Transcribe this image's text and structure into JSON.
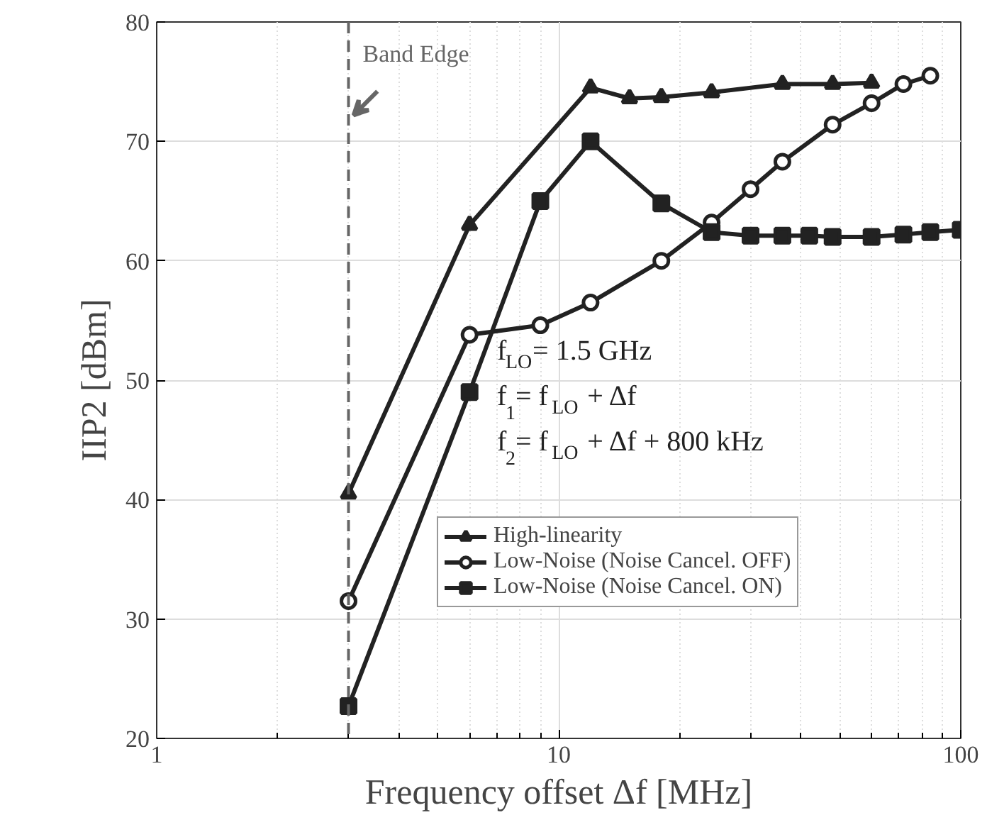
{
  "chart_data": {
    "type": "line",
    "xlabel": "Frequency offset Δf [MHz]",
    "ylabel": "IIP2 [dBm]",
    "log": "x",
    "xlim": [
      1,
      100
    ],
    "xticks": [
      1,
      10,
      100
    ],
    "ylim": [
      20,
      80
    ],
    "yticks": [
      20,
      30,
      40,
      50,
      60,
      70,
      80
    ],
    "grid": true,
    "legend": "right",
    "series": [
      {
        "name": "High-linearity",
        "color": "#222222",
        "marker": "triangle",
        "x": [
          3,
          6,
          12,
          15,
          18,
          24,
          36,
          48,
          60
        ],
        "values": [
          40.5,
          63,
          74.5,
          73.6,
          73.7,
          74.1,
          74.8,
          74.8,
          74.9
        ]
      },
      {
        "name": "Low-Noise (Noise Cancel. OFF)",
        "color": "#222222",
        "marker": "circle",
        "x": [
          3,
          6,
          9,
          12,
          18,
          24,
          30,
          36,
          48,
          60,
          72,
          84
        ],
        "values": [
          31.5,
          53.8,
          54.6,
          56.5,
          60,
          63.2,
          66,
          68.3,
          71.4,
          73.2,
          74.8,
          75.5
        ]
      },
      {
        "name": "Low-Noise (Noise Cancel. ON)",
        "color": "#222222",
        "marker": "square",
        "x": [
          3,
          6,
          9,
          12,
          18,
          24,
          30,
          36,
          42,
          48,
          60,
          72,
          84,
          100
        ],
        "values": [
          22.7,
          49,
          65,
          70,
          64.8,
          62.4,
          62.1,
          62.1,
          62.1,
          62,
          62,
          62.2,
          62.4,
          62.6
        ]
      }
    ],
    "ref_lines": [
      {
        "axis": "x",
        "value": 3,
        "label": "Band Edge",
        "color": "#666666",
        "line_style": "dashed"
      }
    ],
    "annotations": [
      {
        "text": "f$_{LO}$= 1.5 GHz"
      },
      {
        "text": "f$_{1}$= f$_{LO}$ + Δf"
      },
      {
        "text": "f$_{2}$= f$_{LO}$ + Δf + 800 kHz"
      }
    ]
  }
}
